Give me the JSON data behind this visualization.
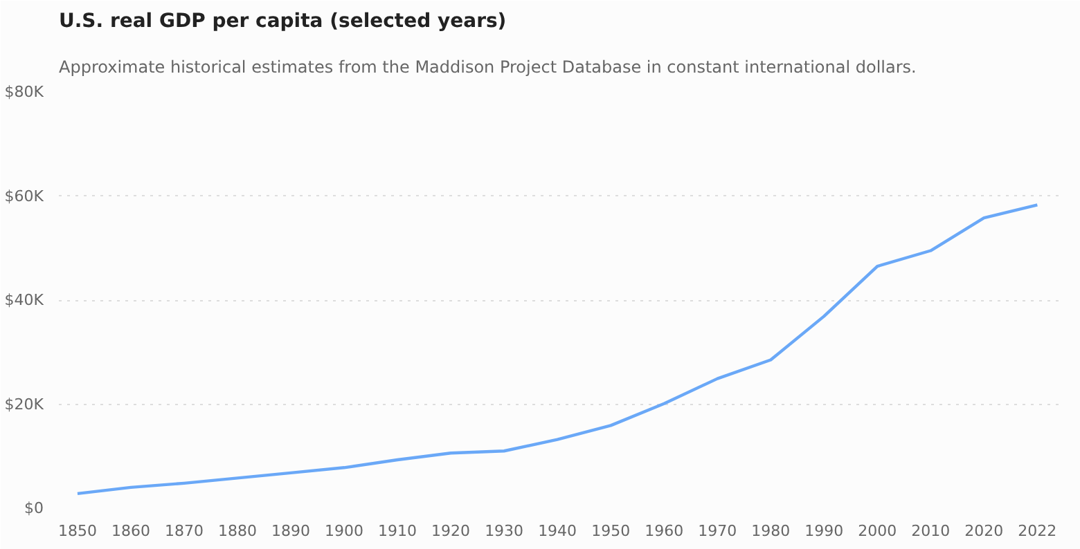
{
  "chart_data": {
    "type": "line",
    "title": "U.S. real GDP per capita (selected years)",
    "subtitle": "Approximate historical estimates from the Maddison Project Database in constant international dollars.",
    "categories": [
      "1850",
      "1860",
      "1870",
      "1880",
      "1890",
      "1900",
      "1910",
      "1920",
      "1930",
      "1940",
      "1950",
      "1960",
      "1970",
      "1980",
      "1990",
      "2000",
      "2010",
      "2020",
      "2022"
    ],
    "series": [
      {
        "color": "#6aa8f7",
        "values": [
          2800,
          4000,
          4800,
          5800,
          6800,
          7800,
          9300,
          10600,
          11000,
          13200,
          15900,
          20100,
          24900,
          28500,
          36900,
          46500,
          49500,
          55800,
          58300
        ]
      }
    ],
    "ylim": [
      0,
      80000
    ],
    "yticks": [
      {
        "value": 0,
        "label": "$0"
      },
      {
        "value": 20000,
        "label": "$20K"
      },
      {
        "value": 40000,
        "label": "$40K"
      },
      {
        "value": 60000,
        "label": "$60K"
      },
      {
        "value": 80000,
        "label": "$80K"
      }
    ],
    "grid": "y",
    "marker": "none",
    "line_style": "solid"
  }
}
